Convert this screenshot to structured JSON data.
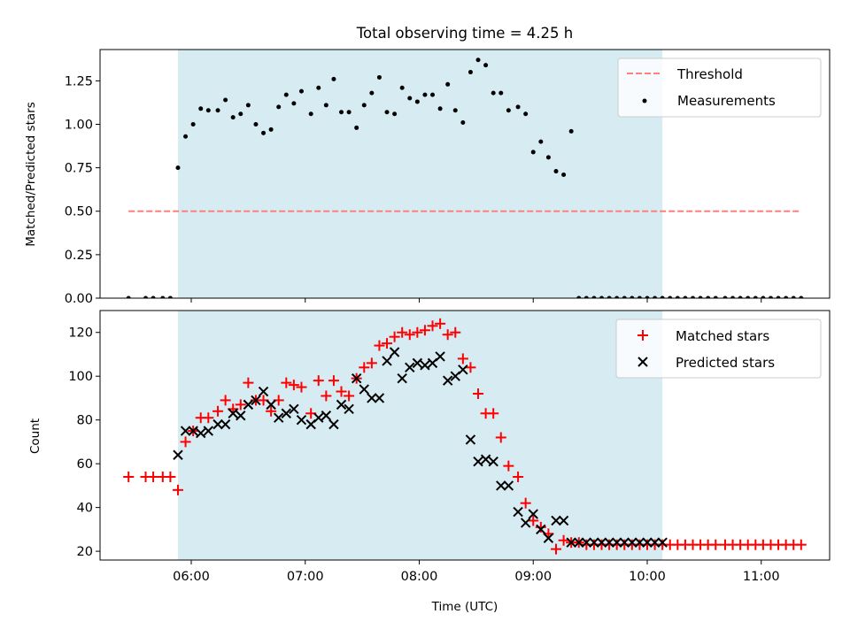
{
  "chart_data": [
    {
      "type": "scatter",
      "title": "Total observing time = 4.25 h",
      "ylabel": "Matched/Predicted stars",
      "xlabel": "",
      "ylim": [
        0,
        1.43
      ],
      "yticks": [
        0.0,
        0.25,
        0.5,
        0.75,
        1.0,
        1.25
      ],
      "ytick_labels": [
        "0.00",
        "0.25",
        "0.50",
        "0.75",
        "1.00",
        "1.25"
      ],
      "xlim": [
        "05:12",
        "11:36"
      ],
      "shaded_span": [
        "05:53",
        "10:08"
      ],
      "shade_color": "#add8e6",
      "legend_position": "upper right",
      "threshold": {
        "name": "Threshold",
        "value": 0.5,
        "x_range": [
          "05:27",
          "11:21"
        ],
        "color": "#ff7f7f",
        "style": "dashed"
      },
      "series": [
        {
          "name": "Measurements",
          "color": "#000000",
          "marker": "dot",
          "x": [
            "05:27",
            "05:36",
            "05:40",
            "05:45",
            "05:49",
            "05:53",
            "05:57",
            "06:01",
            "06:05",
            "06:09",
            "06:14",
            "06:18",
            "06:22",
            "06:26",
            "06:30",
            "06:34",
            "06:38",
            "06:42",
            "06:46",
            "06:50",
            "06:54",
            "06:58",
            "07:03",
            "07:07",
            "07:11",
            "07:15",
            "07:19",
            "07:23",
            "07:27",
            "07:31",
            "07:35",
            "07:39",
            "07:43",
            "07:47",
            "07:51",
            "07:55",
            "07:59",
            "08:03",
            "08:07",
            "08:11",
            "08:15",
            "08:19",
            "08:23",
            "08:27",
            "08:31",
            "08:35",
            "08:39",
            "08:43",
            "08:47",
            "08:52",
            "08:56",
            "09:00",
            "09:04",
            "09:08",
            "09:12",
            "09:16",
            "09:20",
            "09:24",
            "09:28",
            "09:32",
            "09:36",
            "09:40",
            "09:44",
            "09:48",
            "09:52",
            "09:56",
            "10:00",
            "10:04",
            "10:08",
            "10:12",
            "10:16",
            "10:20",
            "10:24",
            "10:28",
            "10:32",
            "10:36",
            "10:41",
            "10:45",
            "10:49",
            "10:53",
            "10:57",
            "11:01",
            "11:05",
            "11:09",
            "11:13",
            "11:17",
            "11:21"
          ],
          "y": [
            0.0,
            0.0,
            0.0,
            0.0,
            0.0,
            0.75,
            0.93,
            1.0,
            1.09,
            1.08,
            1.08,
            1.14,
            1.04,
            1.06,
            1.11,
            1.0,
            0.95,
            0.97,
            1.1,
            1.17,
            1.12,
            1.19,
            1.06,
            1.21,
            1.11,
            1.26,
            1.07,
            1.07,
            0.98,
            1.11,
            1.18,
            1.27,
            1.07,
            1.06,
            1.21,
            1.15,
            1.13,
            1.17,
            1.17,
            1.09,
            1.23,
            1.08,
            1.01,
            1.3,
            1.37,
            1.34,
            1.18,
            1.18,
            1.08,
            1.1,
            1.06,
            0.84,
            0.9,
            0.81,
            0.73,
            0.71,
            0.96,
            0.0,
            0.0,
            0.0,
            0.0,
            0.0,
            0.0,
            0.0,
            0.0,
            0.0,
            0.0,
            0.0,
            0.0,
            0.0,
            0.0,
            0.0,
            0.0,
            0.0,
            0.0,
            0.0,
            0.0,
            0.0,
            0.0,
            0.0,
            0.0,
            0.0,
            0.0,
            0.0,
            0.0,
            0.0,
            0.0
          ]
        }
      ]
    },
    {
      "type": "scatter",
      "title": "",
      "ylabel": "Count",
      "xlabel": "Time (UTC)",
      "ylim": [
        16,
        130
      ],
      "yticks": [
        20,
        40,
        60,
        80,
        100,
        120
      ],
      "ytick_labels": [
        "20",
        "40",
        "60",
        "80",
        "100",
        "120"
      ],
      "xlim": [
        "05:12",
        "11:36"
      ],
      "xticks": [
        "06:00",
        "07:00",
        "08:00",
        "09:00",
        "10:00",
        "11:00"
      ],
      "xtick_labels": [
        "06:00",
        "07:00",
        "08:00",
        "09:00",
        "10:00",
        "11:00"
      ],
      "shaded_span": [
        "05:53",
        "10:08"
      ],
      "shade_color": "#add8e6",
      "legend_position": "upper right",
      "series": [
        {
          "name": "Matched stars",
          "color": "#ff0000",
          "marker": "plus",
          "x": [
            "05:27",
            "05:36",
            "05:40",
            "05:45",
            "05:49",
            "05:53",
            "05:57",
            "06:01",
            "06:05",
            "06:09",
            "06:14",
            "06:18",
            "06:22",
            "06:26",
            "06:30",
            "06:34",
            "06:38",
            "06:42",
            "06:46",
            "06:50",
            "06:54",
            "06:58",
            "07:03",
            "07:07",
            "07:11",
            "07:15",
            "07:19",
            "07:23",
            "07:27",
            "07:31",
            "07:35",
            "07:39",
            "07:43",
            "07:47",
            "07:51",
            "07:55",
            "07:59",
            "08:03",
            "08:07",
            "08:11",
            "08:15",
            "08:19",
            "08:23",
            "08:27",
            "08:31",
            "08:35",
            "08:39",
            "08:43",
            "08:47",
            "08:52",
            "08:56",
            "09:00",
            "09:04",
            "09:08",
            "09:12",
            "09:16",
            "09:20",
            "09:24",
            "09:28",
            "09:32",
            "09:36",
            "09:40",
            "09:44",
            "09:48",
            "09:52",
            "09:56",
            "10:00",
            "10:04",
            "10:08",
            "10:12",
            "10:16",
            "10:20",
            "10:24",
            "10:28",
            "10:32",
            "10:36",
            "10:41",
            "10:45",
            "10:49",
            "10:53",
            "10:57",
            "11:01",
            "11:05",
            "11:09",
            "11:13",
            "11:17",
            "11:21"
          ],
          "y": [
            54,
            54,
            54,
            54,
            54,
            48,
            70,
            75,
            81,
            81,
            84,
            89,
            85,
            87,
            97,
            89,
            89,
            84,
            89,
            97,
            96,
            95,
            83,
            98,
            91,
            98,
            93,
            91,
            99,
            104,
            106,
            114,
            115,
            118,
            120,
            119,
            120,
            121,
            123,
            124,
            119,
            120,
            108,
            104,
            92,
            83,
            83,
            72,
            59,
            54,
            42,
            34,
            31,
            28,
            21,
            25,
            24,
            24,
            23,
            23,
            23,
            23,
            23,
            23,
            23,
            23,
            23,
            23,
            23,
            23,
            23,
            23,
            23,
            23,
            23,
            23,
            23,
            23,
            23,
            23,
            23,
            23,
            23,
            23,
            23,
            23,
            23
          ]
        },
        {
          "name": "Predicted stars",
          "color": "#000000",
          "marker": "x",
          "x": [
            "05:53",
            "05:57",
            "06:01",
            "06:05",
            "06:09",
            "06:14",
            "06:18",
            "06:22",
            "06:26",
            "06:30",
            "06:34",
            "06:38",
            "06:42",
            "06:46",
            "06:50",
            "06:54",
            "06:58",
            "07:03",
            "07:07",
            "07:11",
            "07:15",
            "07:19",
            "07:23",
            "07:27",
            "07:31",
            "07:35",
            "07:39",
            "07:43",
            "07:47",
            "07:51",
            "07:55",
            "07:59",
            "08:03",
            "08:07",
            "08:11",
            "08:15",
            "08:19",
            "08:23",
            "08:27",
            "08:31",
            "08:35",
            "08:39",
            "08:43",
            "08:47",
            "08:52",
            "08:56",
            "09:00",
            "09:04",
            "09:08",
            "09:12",
            "09:16",
            "09:20",
            "09:24",
            "09:28",
            "09:32",
            "09:36",
            "09:40",
            "09:44",
            "09:48",
            "09:52",
            "09:56",
            "10:00",
            "10:04",
            "10:08"
          ],
          "y": [
            64,
            75,
            75,
            74,
            75,
            78,
            78,
            83,
            82,
            87,
            89,
            93,
            87,
            81,
            83,
            85,
            80,
            78,
            81,
            82,
            78,
            87,
            85,
            99,
            94,
            90,
            90,
            107,
            111,
            99,
            104,
            106,
            105,
            106,
            109,
            98,
            100,
            103,
            71,
            61,
            62,
            61,
            50,
            50,
            38,
            33,
            37,
            30,
            26,
            34,
            34,
            24,
            24,
            24,
            24,
            24,
            24,
            24,
            24,
            24,
            24,
            24,
            24,
            24
          ]
        }
      ]
    }
  ]
}
